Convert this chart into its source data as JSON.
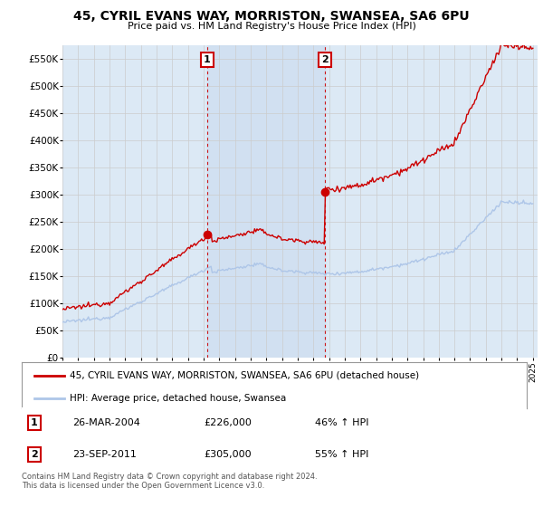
{
  "title": "45, CYRIL EVANS WAY, MORRISTON, SWANSEA, SA6 6PU",
  "subtitle": "Price paid vs. HM Land Registry's House Price Index (HPI)",
  "ylabel_ticks": [
    "£0",
    "£50K",
    "£100K",
    "£150K",
    "£200K",
    "£250K",
    "£300K",
    "£350K",
    "£400K",
    "£450K",
    "£500K",
    "£550K"
  ],
  "ytick_values": [
    0,
    50000,
    100000,
    150000,
    200000,
    250000,
    300000,
    350000,
    400000,
    450000,
    500000,
    550000
  ],
  "ylim": [
    0,
    575000
  ],
  "year_start": 1995,
  "year_end": 2025,
  "sale1_year": 2004.23,
  "sale1_price": 226000,
  "sale2_year": 2011.73,
  "sale2_price": 305000,
  "hpi_color": "#aec6e8",
  "sale_color": "#cc0000",
  "marker_box_color": "#cc0000",
  "bg_color": "#dce9f5",
  "shade_color": "#ddeeff",
  "plot_bg": "#ffffff",
  "grid_color": "#cccccc",
  "legend_label_sale": "45, CYRIL EVANS WAY, MORRISTON, SWANSEA, SA6 6PU (detached house)",
  "legend_label_hpi": "HPI: Average price, detached house, Swansea",
  "footnote": "Contains HM Land Registry data © Crown copyright and database right 2024.\nThis data is licensed under the Open Government Licence v3.0.",
  "marker1": {
    "label": "1",
    "date_str": "26-MAR-2004",
    "price_str": "£226,000",
    "pct_str": "46% ↑ HPI"
  },
  "marker2": {
    "label": "2",
    "date_str": "23-SEP-2011",
    "price_str": "£305,000",
    "pct_str": "55% ↑ HPI"
  }
}
